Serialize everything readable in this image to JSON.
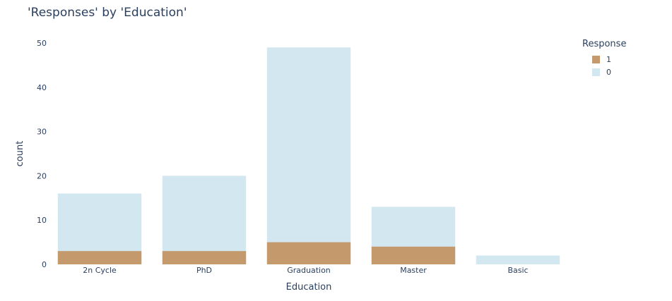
{
  "chart_data": {
    "type": "bar",
    "barmode": "overlay",
    "title": "'Responses' by 'Education'",
    "xlabel": "Education",
    "ylabel": "count",
    "categories": [
      "2n Cycle",
      "PhD",
      "Graduation",
      "Master",
      "Basic"
    ],
    "series": [
      {
        "name": "1",
        "color": "#c49a6c",
        "values": [
          3,
          3,
          5,
          4,
          0
        ]
      },
      {
        "name": "0",
        "color": "#d3e7f0",
        "values": [
          16,
          20,
          49,
          13,
          2
        ]
      }
    ],
    "ylim": [
      0,
      50
    ],
    "yticks": [
      0,
      10,
      20,
      30,
      40,
      50
    ],
    "grid": false,
    "legend": {
      "title": "Response",
      "placement": "top-right"
    }
  }
}
